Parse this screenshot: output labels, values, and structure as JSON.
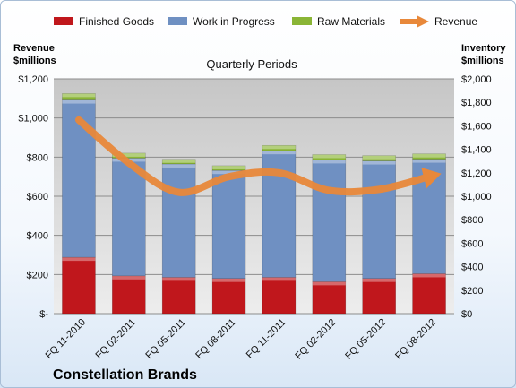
{
  "chart_data": {
    "type": "bar",
    "stacked": true,
    "company": "Constellation Brands",
    "subtitle": "Quarterly Periods",
    "ylabel_left": [
      "Revenue",
      "$millions"
    ],
    "ylabel_right": [
      "Inventory",
      "$millions"
    ],
    "categories": [
      "FQ 11-2010",
      "FQ 02-2011",
      "FQ 05-2011",
      "FQ 08-2011",
      "FQ 11-2011",
      "FQ 02-2012",
      "FQ 05-2012",
      "FQ 08-2012"
    ],
    "series": [
      {
        "name": "Finished Goods",
        "axis": "right",
        "color": "#c0171c",
        "values": [
          480,
          322,
          310,
          300,
          310,
          272,
          300,
          340
        ]
      },
      {
        "name": "Work in Progress",
        "axis": "right",
        "color": "#6f90c2",
        "values": [
          1340,
          1003,
          965,
          920,
          1078,
          1038,
          1001,
          976
        ]
      },
      {
        "name": "Raw Materials",
        "axis": "right",
        "color": "#8ab536",
        "values": [
          55,
          42,
          40,
          40,
          45,
          45,
          45,
          45
        ]
      },
      {
        "name": "Revenue",
        "axis": "left",
        "type": "line",
        "color": "#e8883a",
        "values": [
          990,
          770,
          620,
          700,
          720,
          630,
          635,
          700
        ]
      }
    ],
    "ylim_left": [
      0,
      1200
    ],
    "ylim_right": [
      0,
      2000
    ],
    "yticks_left": [
      "$-",
      "$200",
      "$400",
      "$600",
      "$800",
      "$1,000",
      "$1,200"
    ],
    "yticks_right": [
      "$0",
      "$200",
      "$400",
      "$600",
      "$800",
      "$1,000",
      "$1,200",
      "$1,400",
      "$1,600",
      "$1,800",
      "$2,000"
    ],
    "legend_position": "top",
    "grid": true
  }
}
